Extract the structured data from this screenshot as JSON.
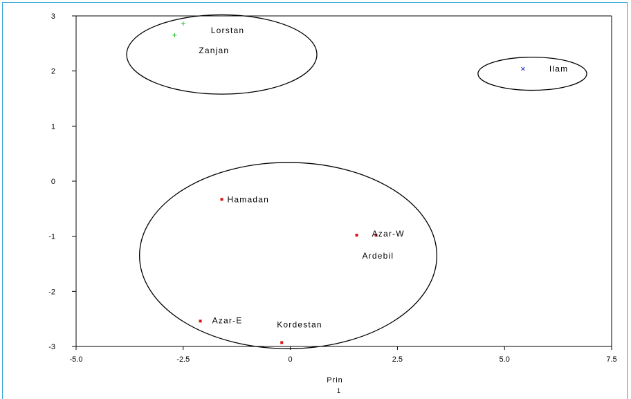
{
  "chart_data": {
    "type": "scatter",
    "title": "",
    "xlabel": "Prin",
    "xlabel_sub": "1",
    "ylabel": "",
    "xlim": [
      -5.0,
      7.5
    ],
    "ylim": [
      -3,
      3
    ],
    "x_ticks": [
      "-5.0",
      "-2.5",
      "0",
      "2.5",
      "5.0",
      "7.5"
    ],
    "y_ticks": [
      "3",
      "2",
      "1",
      "0",
      "-1",
      "-2",
      "-3"
    ],
    "grid": false,
    "series": [
      {
        "marker": "plus",
        "color": "#22bb22",
        "points": [
          {
            "x": -2.5,
            "y": 2.86,
            "label": "Lorstan"
          },
          {
            "x": -2.7,
            "y": 2.65,
            "label": "Zanjan"
          }
        ]
      },
      {
        "marker": "x",
        "color": "#2233cc",
        "points": [
          {
            "x": 5.43,
            "y": 2.04,
            "label": "Ilam"
          }
        ]
      },
      {
        "marker": "square",
        "color": "#dd1111",
        "points": [
          {
            "x": -1.6,
            "y": -0.33,
            "label": "Hamadan"
          },
          {
            "x": 1.55,
            "y": -0.98,
            "label": "Azar-W"
          },
          {
            "x": 2.0,
            "y": -0.98,
            "label": "Ardebil"
          },
          {
            "x": -2.1,
            "y": -2.54,
            "label": "Azar-E"
          },
          {
            "x": -0.2,
            "y": -2.93,
            "label": "Kordestan"
          }
        ]
      }
    ],
    "clusters": [
      {
        "cx": -1.6,
        "cy": 2.3,
        "rx": 2.22,
        "ry": 0.72
      },
      {
        "cx": 5.65,
        "cy": 1.95,
        "rx": 1.27,
        "ry": 0.3
      },
      {
        "cx": -0.05,
        "cy": -1.35,
        "rx": 3.47,
        "ry": 1.69
      }
    ]
  }
}
